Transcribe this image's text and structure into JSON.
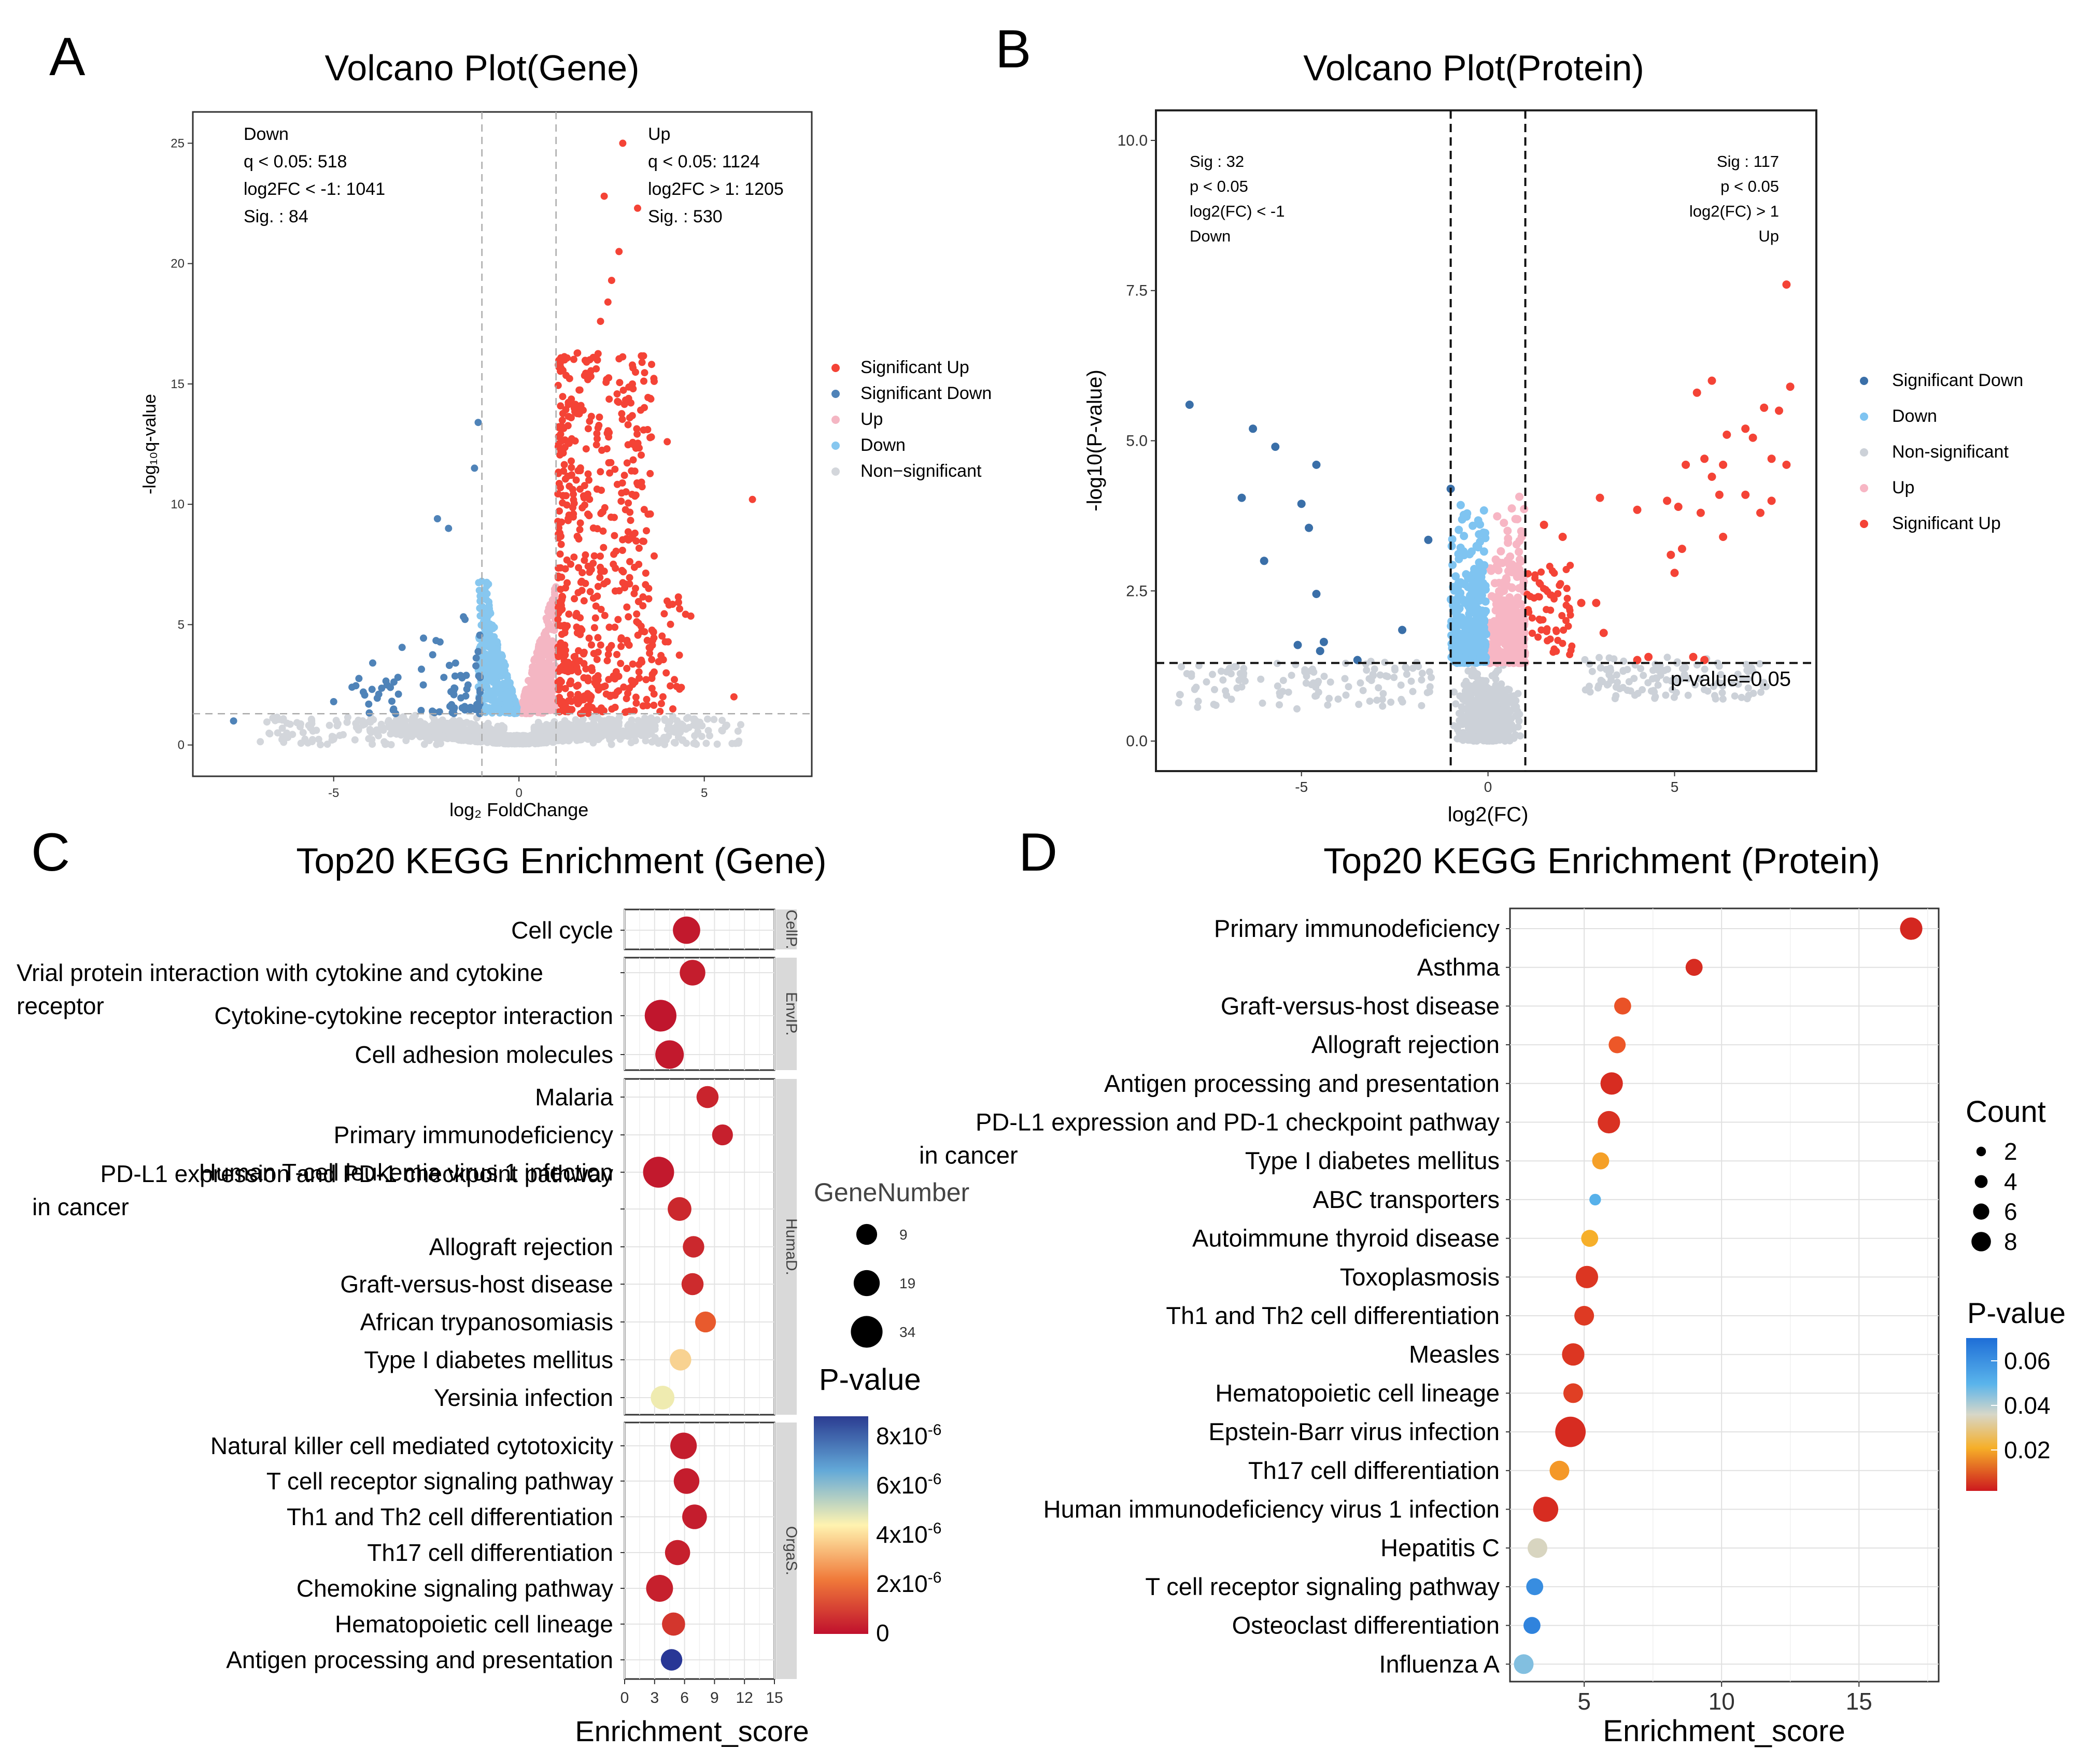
{
  "panels": {
    "A": {
      "letter": "A",
      "chart_data": {
        "type": "scatter",
        "title": "Volcano Plot(Gene)",
        "xlabel": "log₂ FoldChange",
        "ylabel": "-log₁₀q-value",
        "xlim": [
          -8.8,
          7.9
        ],
        "ylim": [
          -1.3,
          26.3
        ],
        "xticks": [
          -5,
          0,
          5
        ],
        "yticks": [
          0,
          5,
          10,
          15,
          20,
          25
        ],
        "x_threshold": [
          -1,
          1
        ],
        "y_threshold": 1.3,
        "down_annotation": [
          "Down",
          "q < 0.05: 518",
          "log2FC < -1: 1041",
          "Sig. : 84"
        ],
        "up_annotation": [
          "Up",
          "q < 0.05: 1124",
          "log2FC > 1: 1205",
          "Sig. : 530"
        ],
        "legend": [
          "Significant Up",
          "Significant Down",
          "Up",
          "Down",
          "Non−significant"
        ],
        "colors": {
          "sig_up": "#f44336",
          "sig_down": "#4f83b8",
          "up": "#f4b6c3",
          "down": "#87c7ef",
          "ns": "#d3d6db"
        },
        "highlight_points": [
          {
            "x": 2.8,
            "y": 25.0
          },
          {
            "x": 2.3,
            "y": 22.8
          },
          {
            "x": 3.2,
            "y": 22.3
          },
          {
            "x": 2.7,
            "y": 20.5
          },
          {
            "x": 2.5,
            "y": 19.3
          },
          {
            "x": 2.4,
            "y": 18.4
          },
          {
            "x": 2.2,
            "y": 17.6
          },
          {
            "x": 6.3,
            "y": 10.2
          },
          {
            "x": 4.0,
            "y": 12.6
          },
          {
            "x": -1.1,
            "y": 13.4
          },
          {
            "x": -1.2,
            "y": 11.5
          },
          {
            "x": -2.2,
            "y": 9.4
          },
          {
            "x": -1.9,
            "y": 9.0
          },
          {
            "x": -5.0,
            "y": 1.8
          },
          {
            "x": -4.2,
            "y": 2.2
          },
          {
            "x": -7.7,
            "y": 1.0
          },
          {
            "x": 5.8,
            "y": 2.0
          }
        ]
      }
    },
    "B": {
      "letter": "B",
      "chart_data": {
        "type": "scatter",
        "title": "Volcano Plot(Protein)",
        "xlabel": "log2(FC)",
        "ylabel": "-log10(P-value)",
        "xlim": [
          -8.9,
          8.8
        ],
        "ylim": [
          -0.5,
          10.5
        ],
        "xticks": [
          -5,
          0,
          5
        ],
        "yticks": [
          0.0,
          2.5,
          5.0,
          7.5,
          10.0
        ],
        "ytick_labels": [
          "0.0",
          "2.5",
          "5.0",
          "7.5",
          "10.0"
        ],
        "x_threshold": [
          -1,
          1
        ],
        "y_threshold": 1.3,
        "threshold_label": "p-value=0.05",
        "down_annotation": [
          "Sig : 32",
          "p < 0.05",
          "log2(FC) < -1",
          "Down"
        ],
        "up_annotation": [
          "Sig : 117",
          "p < 0.05",
          "log2(FC) > 1",
          "Up"
        ],
        "legend": [
          "Significant Down",
          "Down",
          "Non-significant",
          "Up",
          "Significant Up"
        ],
        "colors": {
          "sig_up": "#f44336",
          "sig_down": "#3a6fa8",
          "up": "#f7b6c4",
          "down": "#7fc4f1",
          "ns": "#ccd1d8"
        },
        "sig_down_points": [
          {
            "x": -8.0,
            "y": 5.6
          },
          {
            "x": -6.3,
            "y": 5.2
          },
          {
            "x": -5.7,
            "y": 4.9
          },
          {
            "x": -4.6,
            "y": 4.6
          },
          {
            "x": -6.6,
            "y": 4.05
          },
          {
            "x": -5.0,
            "y": 3.95
          },
          {
            "x": -4.8,
            "y": 3.55
          },
          {
            "x": -6.0,
            "y": 3.0
          },
          {
            "x": -4.6,
            "y": 2.45
          },
          {
            "x": -4.4,
            "y": 1.65
          },
          {
            "x": -5.1,
            "y": 1.6
          },
          {
            "x": -4.5,
            "y": 1.5
          },
          {
            "x": -3.5,
            "y": 1.35
          },
          {
            "x": -2.3,
            "y": 1.85
          },
          {
            "x": -1.6,
            "y": 3.35
          },
          {
            "x": -1.0,
            "y": 4.2
          }
        ],
        "sig_up_points": [
          {
            "x": 8.0,
            "y": 7.6
          },
          {
            "x": 8.1,
            "y": 5.9
          },
          {
            "x": 6.0,
            "y": 6.0
          },
          {
            "x": 5.6,
            "y": 5.8
          },
          {
            "x": 7.4,
            "y": 5.55
          },
          {
            "x": 7.8,
            "y": 5.5
          },
          {
            "x": 6.9,
            "y": 5.2
          },
          {
            "x": 6.4,
            "y": 5.1
          },
          {
            "x": 7.1,
            "y": 5.05
          },
          {
            "x": 5.8,
            "y": 4.7
          },
          {
            "x": 6.3,
            "y": 4.6
          },
          {
            "x": 7.6,
            "y": 4.7
          },
          {
            "x": 8.0,
            "y": 4.6
          },
          {
            "x": 5.3,
            "y": 4.6
          },
          {
            "x": 6.0,
            "y": 4.4
          },
          {
            "x": 4.8,
            "y": 4.0
          },
          {
            "x": 6.9,
            "y": 4.1
          },
          {
            "x": 5.7,
            "y": 3.8
          },
          {
            "x": 4.0,
            "y": 3.85
          },
          {
            "x": 3.0,
            "y": 4.05
          },
          {
            "x": 5.1,
            "y": 3.9
          },
          {
            "x": 7.6,
            "y": 4.0
          },
          {
            "x": 6.3,
            "y": 3.4
          },
          {
            "x": 5.2,
            "y": 3.2
          },
          {
            "x": 4.9,
            "y": 3.1
          },
          {
            "x": 5.0,
            "y": 2.8
          },
          {
            "x": 7.3,
            "y": 3.8
          },
          {
            "x": 6.2,
            "y": 4.1
          },
          {
            "x": 2.5,
            "y": 2.3
          },
          {
            "x": 2.9,
            "y": 2.3
          },
          {
            "x": 3.1,
            "y": 1.8
          },
          {
            "x": 5.5,
            "y": 1.4
          },
          {
            "x": 5.8,
            "y": 1.35
          },
          {
            "x": 4.3,
            "y": 1.4
          },
          {
            "x": 4.0,
            "y": 1.35
          },
          {
            "x": 2.0,
            "y": 3.4
          },
          {
            "x": 1.5,
            "y": 3.6
          }
        ]
      }
    },
    "C": {
      "letter": "C",
      "chart_data": {
        "type": "scatter",
        "title": "Top20 KEGG Enrichment (Gene)",
        "xlabel": "Enrichment_score",
        "xlim": [
          0,
          15
        ],
        "xticks": [
          0,
          3,
          6,
          9,
          12,
          15
        ],
        "size_legend_title": "GeneNumber",
        "size_legend": [
          9,
          19,
          34
        ],
        "color_legend_title": "P-value",
        "color_ticks": [
          {
            "base": "8x10",
            "exp": "-6"
          },
          {
            "base": "6x10",
            "exp": "-6"
          },
          {
            "base": "4x10",
            "exp": "-6"
          },
          {
            "base": "2x10",
            "exp": "-6"
          },
          {
            "base": "0",
            "exp": ""
          }
        ],
        "groups": [
          {
            "name": "CellP.",
            "rows": [
              {
                "label": [
                  "Cell cycle"
                ],
                "x": 6.2,
                "count": 22,
                "p": 2e-07
              }
            ]
          },
          {
            "name": "EnvIP.",
            "rows": [
              {
                "label": [
                  "Vrial protein interaction with cytokine and cytokine",
                  "receptor"
                ],
                "x": 6.8,
                "count": 18,
                "p": 3e-07
              },
              {
                "label": [
                  "Cytokine-cytokine receptor interaction"
                ],
                "x": 3.6,
                "count": 34,
                "p": 1e-07
              },
              {
                "label": [
                  "Cell adhesion molecules"
                ],
                "x": 4.5,
                "count": 25,
                "p": 2e-07
              }
            ]
          },
          {
            "name": "HumaD.",
            "rows": [
              {
                "label": [
                  "Malaria"
                ],
                "x": 8.3,
                "count": 11,
                "p": 5e-07
              },
              {
                "label": [
                  "Primary immunodeficiency"
                ],
                "x": 9.8,
                "count": 9,
                "p": 4e-07
              },
              {
                "label": [
                  "Human T-cell leukemia virus 1 infection"
                ],
                "x": 3.4,
                "count": 32,
                "p": 2e-07
              },
              {
                "label": [
                  "PD-L1 expression and PD-1 checkpoint pathway",
                  "in cancer"
                ],
                "x": 5.5,
                "count": 14,
                "p": 6e-07
              },
              {
                "label": [
                  "Allograft rejection"
                ],
                "x": 6.9,
                "count": 10,
                "p": 6e-07
              },
              {
                "label": [
                  "Graft-versus-host disease"
                ],
                "x": 6.8,
                "count": 11,
                "p": 7e-07
              },
              {
                "label": [
                  "African trypanosomiasis"
                ],
                "x": 8.1,
                "count": 9,
                "p": 2e-06
              },
              {
                "label": [
                  "Type I diabetes mellitus"
                ],
                "x": 5.6,
                "count": 10,
                "p": 3.6e-06
              },
              {
                "label": [
                  "Yersinia infection"
                ],
                "x": 3.8,
                "count": 14,
                "p": 4.2e-06
              }
            ]
          },
          {
            "name": "OrgaS.",
            "rows": [
              {
                "label": [
                  "Natural killer cell mediated cytotoxicity"
                ],
                "x": 5.9,
                "count": 20,
                "p": 3e-07
              },
              {
                "label": [
                  "T cell receptor signaling pathway"
                ],
                "x": 6.2,
                "count": 18,
                "p": 3e-07
              },
              {
                "label": [
                  "Th1 and Th2 cell differentiation"
                ],
                "x": 7.0,
                "count": 16,
                "p": 3e-07
              },
              {
                "label": [
                  "Th17 cell differentiation"
                ],
                "x": 5.3,
                "count": 17,
                "p": 4e-07
              },
              {
                "label": [
                  "Chemokine signaling pathway"
                ],
                "x": 3.5,
                "count": 21,
                "p": 4e-07
              },
              {
                "label": [
                  "Hematopoietic cell lineage"
                ],
                "x": 4.9,
                "count": 13,
                "p": 1e-06
              },
              {
                "label": [
                  "Antigen processing and presentation"
                ],
                "x": 4.7,
                "count": 10,
                "p": 8e-06
              }
            ]
          }
        ]
      }
    },
    "D": {
      "letter": "D",
      "chart_data": {
        "type": "scatter",
        "title": "Top20 KEGG Enrichment (Protein)",
        "xlabel": "Enrichment_score",
        "xlim": [
          2.3,
          17.9
        ],
        "xticks": [
          5,
          10,
          15
        ],
        "size_legend_title": "Count",
        "size_legend": [
          2,
          4,
          6,
          8
        ],
        "color_legend_title": "P-value",
        "color_ticks": [
          "0.06",
          "0.04",
          "0.02"
        ],
        "rows": [
          {
            "label": [
              "Primary immunodeficiency"
            ],
            "x": 16.9,
            "count": 6,
            "p": 0.003
          },
          {
            "label": [
              "Asthma"
            ],
            "x": 9.0,
            "count": 4,
            "p": 0.004
          },
          {
            "label": [
              "Graft-versus-host disease"
            ],
            "x": 6.4,
            "count": 4,
            "p": 0.012
          },
          {
            "label": [
              "Allograft rejection"
            ],
            "x": 6.2,
            "count": 4,
            "p": 0.013
          },
          {
            "label": [
              "Antigen processing and presentation"
            ],
            "x": 6.0,
            "count": 6,
            "p": 0.004
          },
          {
            "label": [
              "PD-L1 expression and PD-1 checkpoint pathway",
              "in cancer"
            ],
            "x": 5.9,
            "count": 6,
            "p": 0.005
          },
          {
            "label": [
              "Type I diabetes mellitus"
            ],
            "x": 5.6,
            "count": 4,
            "p": 0.022
          },
          {
            "label": [
              "ABC transporters"
            ],
            "x": 5.4,
            "count": 2,
            "p": 0.055
          },
          {
            "label": [
              "Autoimmune thyroid disease"
            ],
            "x": 5.2,
            "count": 4,
            "p": 0.024
          },
          {
            "label": [
              "Toxoplasmosis"
            ],
            "x": 5.1,
            "count": 6,
            "p": 0.006
          },
          {
            "label": [
              "Th1 and Th2 cell differentiation"
            ],
            "x": 5.0,
            "count": 5,
            "p": 0.007
          },
          {
            "label": [
              "Measles"
            ],
            "x": 4.6,
            "count": 6,
            "p": 0.006
          },
          {
            "label": [
              "Hematopoietic cell lineage"
            ],
            "x": 4.6,
            "count": 5,
            "p": 0.008
          },
          {
            "label": [
              "Epstein-Barr virus infection"
            ],
            "x": 4.5,
            "count": 9,
            "p": 0.004
          },
          {
            "label": [
              "Th17 cell differentiation"
            ],
            "x": 4.1,
            "count": 5,
            "p": 0.021
          },
          {
            "label": [
              "Human immunodeficiency virus 1 infection"
            ],
            "x": 3.6,
            "count": 7,
            "p": 0.004
          },
          {
            "label": [
              "Hepatitis C"
            ],
            "x": 3.3,
            "count": 5,
            "p": 0.04
          },
          {
            "label": [
              "T cell receptor signaling pathway"
            ],
            "x": 3.2,
            "count": 4,
            "p": 0.062
          },
          {
            "label": [
              "Osteoclast differentiation"
            ],
            "x": 3.1,
            "count": 4,
            "p": 0.064
          },
          {
            "label": [
              "Influenza A"
            ],
            "x": 2.8,
            "count": 5,
            "p": 0.05
          }
        ]
      }
    }
  }
}
